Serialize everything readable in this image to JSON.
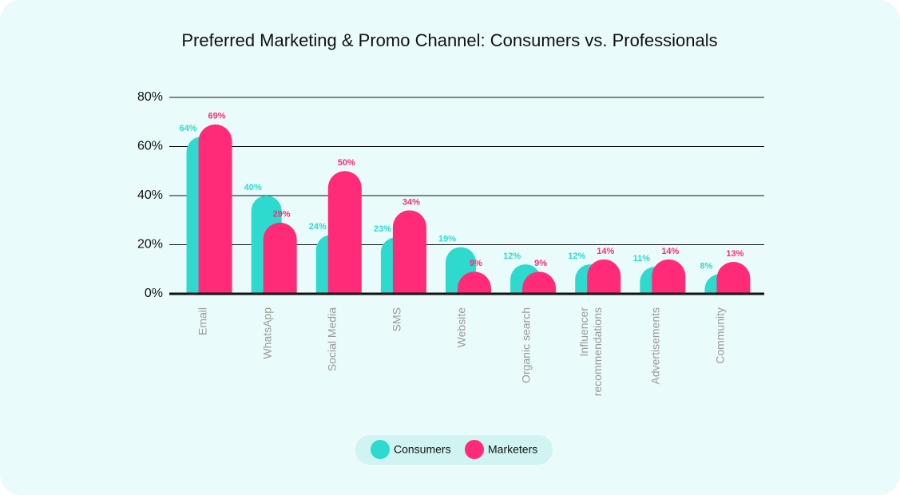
{
  "chart_data": {
    "type": "bar",
    "title": "Preferred Marketing & Promo Channel: Consumers vs. Professionals",
    "categories": [
      "Email",
      "WhatsApp",
      "Social Media",
      "SMS",
      "Website",
      "Organic search",
      "Influencer recommendations",
      "Advertisements",
      "Community"
    ],
    "series": [
      {
        "name": "Consumers",
        "color": "#2ddacd",
        "values": [
          64,
          40,
          24,
          23,
          19,
          12,
          12,
          11,
          8
        ],
        "value_labels": [
          "64%",
          "40%",
          "24%",
          "23%",
          "19%",
          "12%",
          "12%",
          "11%",
          "8%"
        ]
      },
      {
        "name": "Marketers",
        "color": "#ff2a78",
        "values": [
          69,
          29,
          50,
          34,
          9,
          9,
          14,
          14,
          13
        ],
        "value_labels": [
          "69%",
          "29%",
          "50%",
          "34%",
          "9%",
          "9%",
          "14%",
          "14%",
          "13%"
        ]
      }
    ],
    "ylim": [
      0,
      80
    ],
    "yticks": [
      {
        "value": 0,
        "label": "0%"
      },
      {
        "value": 20,
        "label": "20%"
      },
      {
        "value": 40,
        "label": "40%"
      },
      {
        "value": 60,
        "label": "60%"
      },
      {
        "value": 80,
        "label": "80%"
      }
    ],
    "grid": true
  }
}
